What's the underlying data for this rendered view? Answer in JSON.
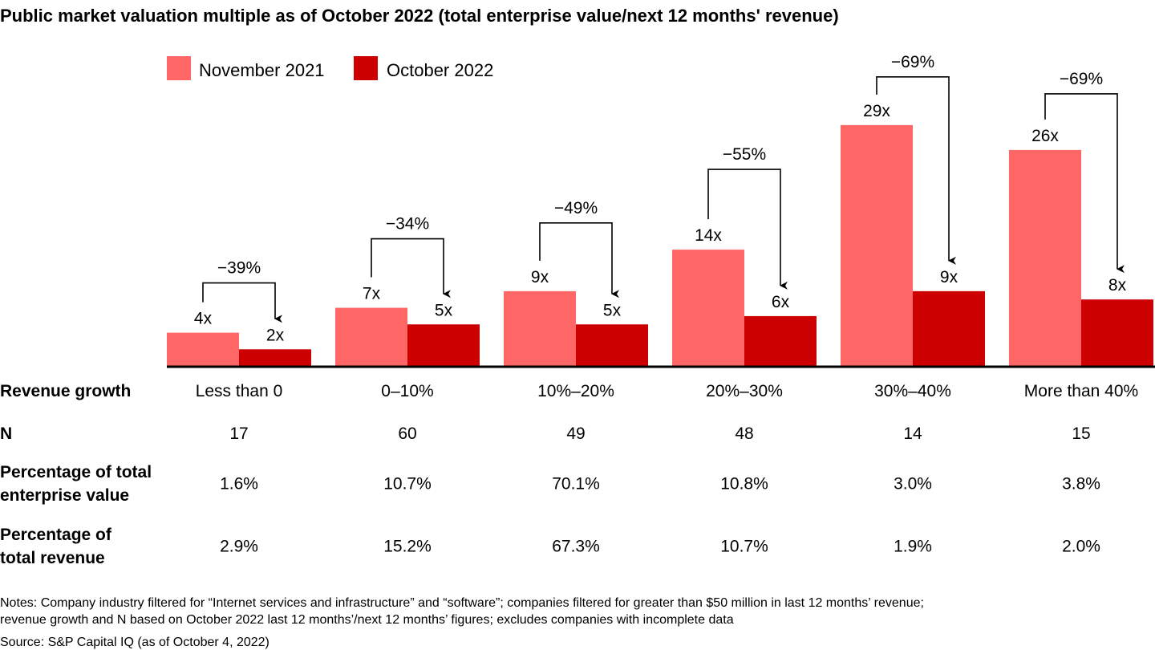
{
  "chart_data": {
    "type": "bar",
    "title": "Public market valuation multiple as of October 2022 (total enterprise value/next 12 months' revenue)",
    "categories": [
      "Less than 0",
      "0–10%",
      "10%–20%",
      "20%–30%",
      "30%–40%",
      "More than 40%"
    ],
    "series": [
      {
        "name": "November 2021",
        "values": [
          4,
          7,
          9,
          14,
          29,
          26
        ],
        "labels": [
          "4x",
          "7x",
          "9x",
          "14x",
          "29x",
          "26x"
        ],
        "color": "#ff6666"
      },
      {
        "name": "October 2022",
        "values": [
          2,
          5,
          5,
          6,
          9,
          8
        ],
        "labels": [
          "2x",
          "5x",
          "5x",
          "6x",
          "9x",
          "8x"
        ],
        "color": "#cc0000"
      }
    ],
    "changes": [
      "−39%",
      "−34%",
      "−49%",
      "−55%",
      "−69%",
      "−69%"
    ],
    "legend_position": "top-left",
    "grid": false,
    "table": {
      "rows": [
        {
          "label": [
            "Revenue growth"
          ],
          "values": [
            "Less than 0",
            "0–10%",
            "10%–20%",
            "20%–30%",
            "30%–40%",
            "More than 40%"
          ]
        },
        {
          "label": [
            "N"
          ],
          "values": [
            "17",
            "60",
            "49",
            "48",
            "14",
            "15"
          ]
        },
        {
          "label": [
            "Percentage of total",
            "enterprise value"
          ],
          "values": [
            "1.6%",
            "10.7%",
            "70.1%",
            "10.8%",
            "3.0%",
            "3.8%"
          ]
        },
        {
          "label": [
            "Percentage of",
            "total revenue"
          ],
          "values": [
            "2.9%",
            "15.2%",
            "67.3%",
            "10.7%",
            "1.9%",
            "2.0%"
          ]
        }
      ]
    },
    "notes": [
      "Notes: Company industry filtered for “Internet services and infrastructure” and “software”; companies filtered for greater than $50 million in last 12 months’ revenue;",
      "revenue growth and N based on October 2022 last 12 months’/next 12 months’ figures; excludes companies with incomplete data",
      "Source: S&P Capital IQ (as of October 4, 2022)"
    ]
  }
}
